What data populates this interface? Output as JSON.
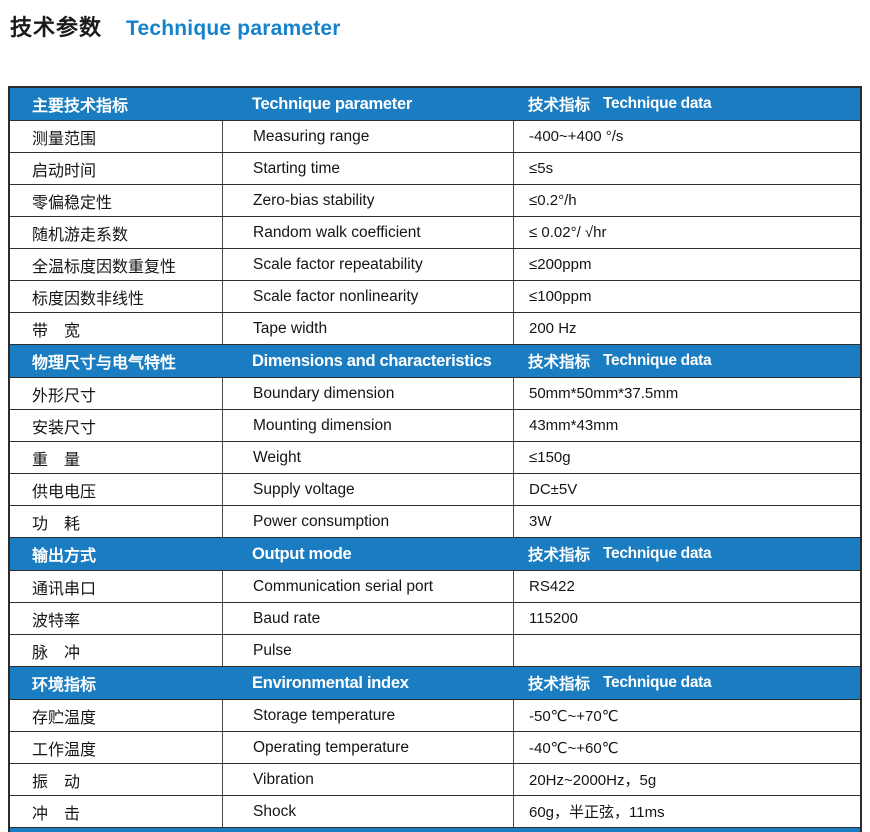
{
  "colors": {
    "accent_blue": "#1a7dc2",
    "title_blue": "#1583cc"
  },
  "page_title": {
    "zh": "技术参数",
    "en": "Technique parameter"
  },
  "table": {
    "sections": [
      {
        "header": {
          "zh": "主要技术指标",
          "en": "Technique parameter",
          "data_zh": "技术指标",
          "data_en": "Technique data"
        },
        "rows": [
          {
            "zh": "测量范围",
            "en": "Measuring range",
            "value": "-400~+400 °/s"
          },
          {
            "zh": "启动时间",
            "en": "Starting time",
            "value": "≤5s"
          },
          {
            "zh": "零偏稳定性",
            "en": "Zero-bias stability",
            "value": "≤0.2°/h"
          },
          {
            "zh": "随机游走系数",
            "en": "Random walk coefficient",
            "value": "≤ 0.02°/ √hr"
          },
          {
            "zh": "全温标度因数重复性",
            "en": "Scale factor repeatability",
            "value": "≤200ppm"
          },
          {
            "zh": "标度因数非线性",
            "en": "Scale factor nonlinearity",
            "value": "≤100ppm"
          },
          {
            "zh": "带　宽",
            "en": "Tape width",
            "value": "200 Hz"
          }
        ]
      },
      {
        "header": {
          "zh": "物理尺寸与电气特性",
          "en": "Dimensions and characteristics",
          "data_zh": "技术指标",
          "data_en": "Technique data"
        },
        "rows": [
          {
            "zh": "外形尺寸",
            "en": "Boundary dimension",
            "value": "50mm*50mm*37.5mm"
          },
          {
            "zh": "安装尺寸",
            "en": "Mounting dimension",
            "value": "43mm*43mm"
          },
          {
            "zh": "重　量",
            "en": "Weight",
            "value": "≤150g"
          },
          {
            "zh": "供电电压",
            "en": "Supply voltage",
            "value": "DC±5V"
          },
          {
            "zh": "功　耗",
            "en": "Power consumption",
            "value": "3W"
          }
        ]
      },
      {
        "header": {
          "zh": "输出方式",
          "en": "Output mode",
          "data_zh": "技术指标",
          "data_en": "Technique data"
        },
        "rows": [
          {
            "zh": "通讯串口",
            "en": "Communication serial port",
            "value": "RS422"
          },
          {
            "zh": "波特率",
            "en": "Baud rate",
            "value": "115200"
          },
          {
            "zh": "脉　冲",
            "en": "Pulse",
            "value": ""
          }
        ]
      },
      {
        "header": {
          "zh": "环境指标",
          "en": "Environmental index",
          "data_zh": "技术指标",
          "data_en": "Technique data"
        },
        "rows": [
          {
            "zh": "存贮温度",
            "en": "Storage temperature",
            "value": "-50℃~+70℃"
          },
          {
            "zh": "工作温度",
            "en": "Operating temperature",
            "value": "-40℃~+60℃"
          },
          {
            "zh": "振　动",
            "en": "Vibration",
            "value": "20Hz~2000Hz，5g"
          },
          {
            "zh": "冲　击",
            "en": "Shock",
            "value": "60g，半正弦，11ms"
          }
        ]
      }
    ]
  }
}
